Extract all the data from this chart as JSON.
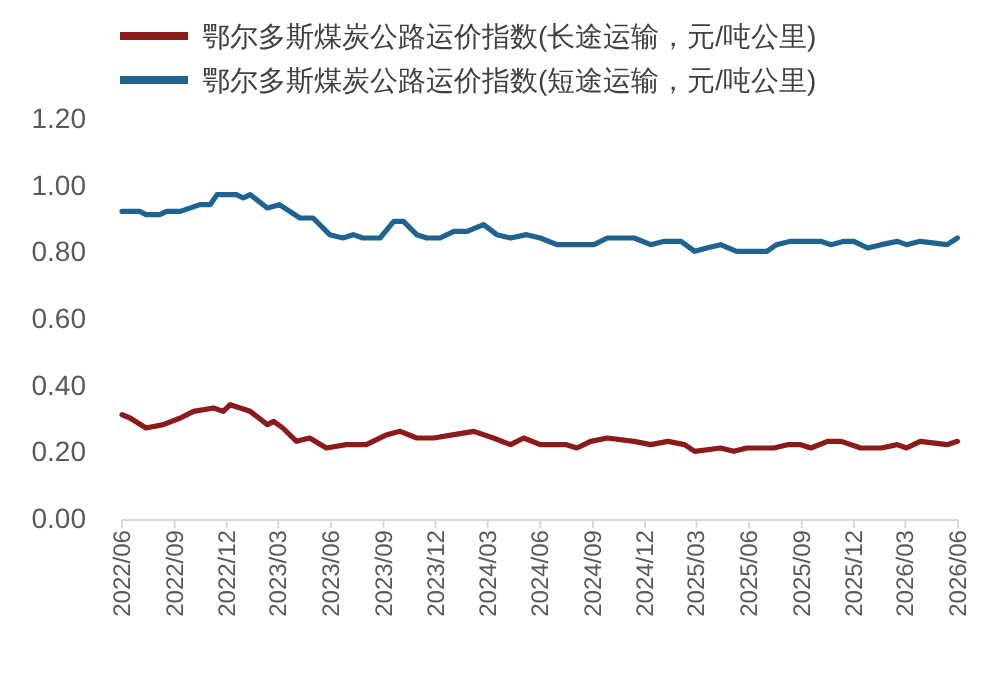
{
  "chart_data": {
    "type": "line",
    "legend": "top",
    "xlim": [
      "2022-06-01",
      "2026-06-01"
    ],
    "xticks": [
      {
        "value": "2022-06-01",
        "label": "2022/06"
      },
      {
        "value": "2022-09-01",
        "label": "2022/09"
      },
      {
        "value": "2022-12-01",
        "label": "2022/12"
      },
      {
        "value": "2023-03-01",
        "label": "2023/03"
      },
      {
        "value": "2023-06-01",
        "label": "2023/06"
      },
      {
        "value": "2023-09-01",
        "label": "2023/09"
      },
      {
        "value": "2023-12-01",
        "label": "2023/12"
      },
      {
        "value": "2024-03-01",
        "label": "2024/03"
      },
      {
        "value": "2024-06-01",
        "label": "2024/06"
      },
      {
        "value": "2024-09-01",
        "label": "2024/09"
      },
      {
        "value": "2024-12-01",
        "label": "2024/12"
      },
      {
        "value": "2025-03-01",
        "label": "2025/03"
      },
      {
        "value": "2025-06-01",
        "label": "2025/06"
      },
      {
        "value": "2025-09-01",
        "label": "2025/09"
      },
      {
        "value": "2025-12-01",
        "label": "2025/12"
      },
      {
        "value": "2026-03-01",
        "label": "2026/03"
      },
      {
        "value": "2026-06-01",
        "label": "2026/06"
      }
    ],
    "ylim": [
      0,
      1.2
    ],
    "yticks": [
      {
        "value": 0,
        "label": "0.00"
      },
      {
        "value": 0.2,
        "label": "0.20"
      },
      {
        "value": 0.4,
        "label": "0.40"
      },
      {
        "value": 0.6,
        "label": "0.60"
      },
      {
        "value": 0.8,
        "label": "0.80"
      },
      {
        "value": 1.0,
        "label": "1.00"
      },
      {
        "value": 1.2,
        "label": "1.20"
      }
    ],
    "series": [
      {
        "name": "鄂尔多斯煤炭公路运价指数(长途运输，元/吨公里)",
        "color": "#8b1a1a",
        "x": [
          "2022-06-01",
          "2022-06-15",
          "2022-07-13",
          "2022-08-12",
          "2022-09-11",
          "2022-10-04",
          "2022-11-08",
          "2022-11-25",
          "2022-12-07",
          "2023-01-11",
          "2023-02-10",
          "2023-02-21",
          "2023-03-09",
          "2023-04-02",
          "2023-04-25",
          "2023-05-24",
          "2023-06-28",
          "2023-08-02",
          "2023-09-07",
          "2023-09-30",
          "2023-10-29",
          "2023-11-28",
          "2024-01-02",
          "2024-02-06",
          "2024-03-11",
          "2024-04-10",
          "2024-05-03",
          "2024-06-01",
          "2024-06-30",
          "2024-07-17",
          "2024-08-04",
          "2024-08-28",
          "2024-09-26",
          "2024-11-12",
          "2024-12-11",
          "2025-01-10",
          "2025-02-08",
          "2025-02-26",
          "2025-04-12",
          "2025-05-05",
          "2025-05-28",
          "2025-07-14",
          "2025-08-07",
          "2025-08-30",
          "2025-09-17",
          "2025-10-16",
          "2025-11-09",
          "2025-12-13",
          "2026-01-18",
          "2026-02-15",
          "2026-03-03",
          "2026-03-27",
          "2026-05-13",
          "2026-05-31"
        ],
        "values": [
          0.31,
          0.3,
          0.27,
          0.28,
          0.3,
          0.32,
          0.33,
          0.32,
          0.34,
          0.32,
          0.28,
          0.29,
          0.27,
          0.23,
          0.24,
          0.21,
          0.22,
          0.22,
          0.25,
          0.26,
          0.24,
          0.24,
          0.25,
          0.26,
          0.24,
          0.22,
          0.24,
          0.22,
          0.22,
          0.22,
          0.21,
          0.23,
          0.24,
          0.23,
          0.22,
          0.23,
          0.22,
          0.2,
          0.21,
          0.2,
          0.21,
          0.21,
          0.22,
          0.22,
          0.21,
          0.23,
          0.23,
          0.21,
          0.21,
          0.22,
          0.21,
          0.23,
          0.22,
          0.23
        ]
      },
      {
        "name": "鄂尔多斯煤炭公路运价指数(短途运输，元/吨公里)",
        "color": "#1f6391",
        "x": [
          "2022-06-01",
          "2022-07-02",
          "2022-07-13",
          "2022-08-06",
          "2022-08-18",
          "2022-09-11",
          "2022-10-15",
          "2022-11-02",
          "2022-11-14",
          "2022-12-18",
          "2022-12-30",
          "2023-01-11",
          "2023-02-10",
          "2023-03-03",
          "2023-04-08",
          "2023-05-01",
          "2023-05-30",
          "2023-06-22",
          "2023-07-10",
          "2023-07-27",
          "2023-08-26",
          "2023-09-19",
          "2023-10-06",
          "2023-10-29",
          "2023-11-16",
          "2023-12-09",
          "2024-01-02",
          "2024-01-25",
          "2024-02-23",
          "2024-03-17",
          "2024-04-10",
          "2024-05-08",
          "2024-06-01",
          "2024-06-30",
          "2024-09-03",
          "2024-09-26",
          "2024-11-12",
          "2024-12-11",
          "2025-01-04",
          "2025-02-02",
          "2025-02-26",
          "2025-03-19",
          "2025-04-12",
          "2025-05-10",
          "2025-07-02",
          "2025-07-19",
          "2025-08-12",
          "2025-10-04",
          "2025-10-22",
          "2025-11-14",
          "2025-12-01",
          "2025-12-25",
          "2026-01-18",
          "2026-02-15",
          "2026-03-03",
          "2026-03-27",
          "2026-05-13",
          "2026-05-31"
        ],
        "values": [
          0.92,
          0.92,
          0.91,
          0.91,
          0.92,
          0.92,
          0.94,
          0.94,
          0.97,
          0.97,
          0.96,
          0.97,
          0.93,
          0.94,
          0.9,
          0.9,
          0.85,
          0.84,
          0.85,
          0.84,
          0.84,
          0.89,
          0.89,
          0.85,
          0.84,
          0.84,
          0.86,
          0.86,
          0.88,
          0.85,
          0.84,
          0.85,
          0.84,
          0.82,
          0.82,
          0.84,
          0.84,
          0.82,
          0.83,
          0.83,
          0.8,
          0.81,
          0.82,
          0.8,
          0.8,
          0.82,
          0.83,
          0.83,
          0.82,
          0.83,
          0.83,
          0.81,
          0.82,
          0.83,
          0.82,
          0.83,
          0.82,
          0.84
        ]
      }
    ]
  }
}
